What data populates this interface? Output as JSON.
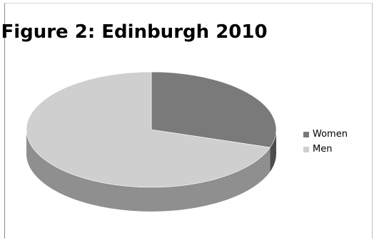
{
  "chart_data": {
    "type": "pie",
    "style": "3d",
    "title": "Figure 2: Edinburgh 2010",
    "categories": [
      "Women",
      "Men"
    ],
    "values": [
      30,
      70
    ],
    "colors": [
      "#7a7a7a",
      "#cfcfcf"
    ],
    "side_colors": [
      "#4d4d4d",
      "#8f8f8f"
    ],
    "legend_position": "right"
  }
}
